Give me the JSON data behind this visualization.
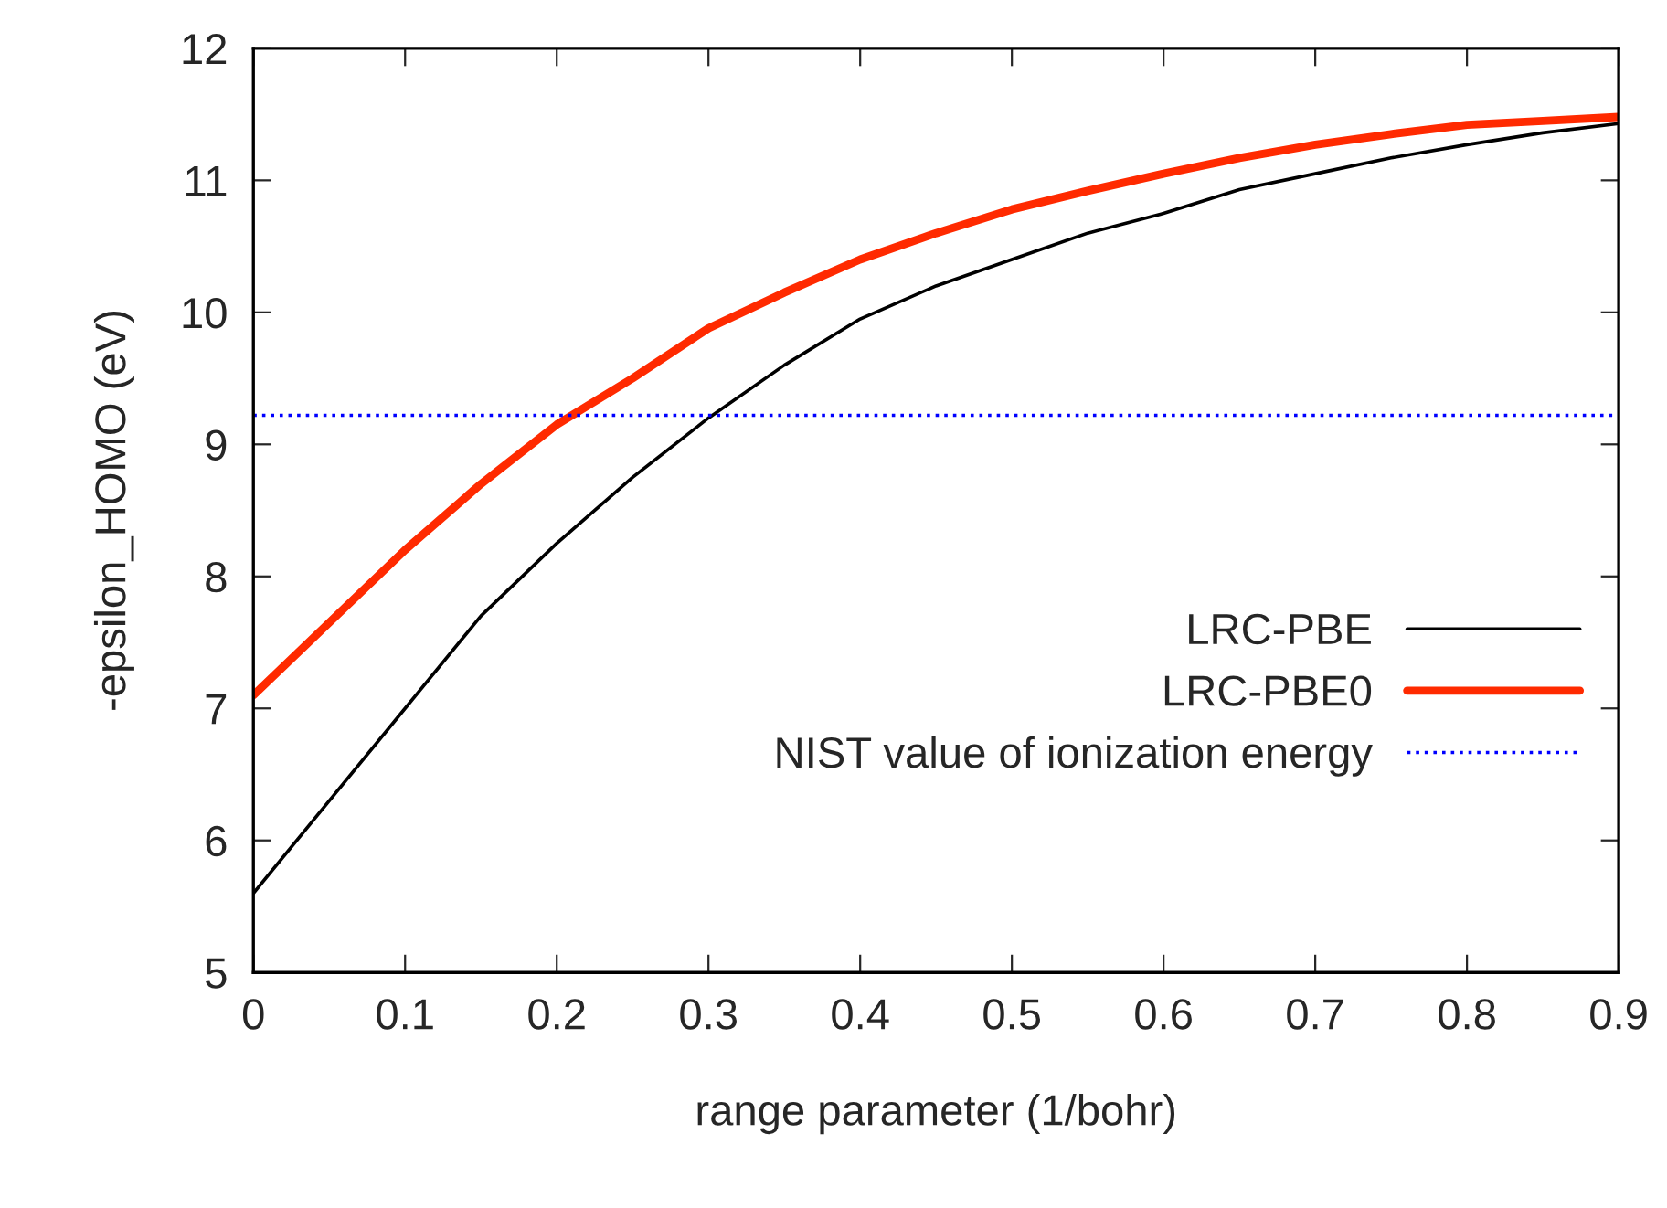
{
  "chart_data": {
    "type": "line",
    "xlabel": "range parameter (1/bohr)",
    "ylabel": "-epsilon_HOMO (eV)",
    "x": [
      0,
      0.05,
      0.1,
      0.15,
      0.2,
      0.25,
      0.3,
      0.35,
      0.4,
      0.45,
      0.5,
      0.55,
      0.6,
      0.65,
      0.7,
      0.75,
      0.8,
      0.85,
      0.9
    ],
    "series": [
      {
        "name": "LRC-PBE",
        "color": "#000000",
        "values": [
          5.6,
          6.3,
          7.0,
          7.7,
          8.25,
          8.75,
          9.2,
          9.6,
          9.95,
          10.2,
          10.4,
          10.6,
          10.75,
          10.93,
          11.05,
          11.17,
          11.27,
          11.36,
          11.43
        ]
      },
      {
        "name": "LRC-PBE0",
        "color": "#ff2a00",
        "values": [
          7.1,
          7.65,
          8.2,
          8.7,
          9.15,
          9.5,
          9.88,
          10.15,
          10.4,
          10.6,
          10.78,
          10.92,
          11.05,
          11.17,
          11.27,
          11.35,
          11.42,
          11.45,
          11.48
        ]
      }
    ],
    "ref_lines": [
      {
        "axis": "y",
        "value": 9.22,
        "label": "NIST value of ionization energy",
        "color": "#0000ff",
        "line_style": "dotted"
      }
    ],
    "xlim": [
      0,
      0.9
    ],
    "xticks": [
      0,
      0.1,
      0.2,
      0.3,
      0.4,
      0.5,
      0.6,
      0.7,
      0.8,
      0.9
    ],
    "ylim": [
      5,
      12
    ],
    "yticks": [
      5,
      6,
      7,
      8,
      9,
      10,
      11,
      12
    ],
    "legend": "bottom right",
    "grid": false
  }
}
